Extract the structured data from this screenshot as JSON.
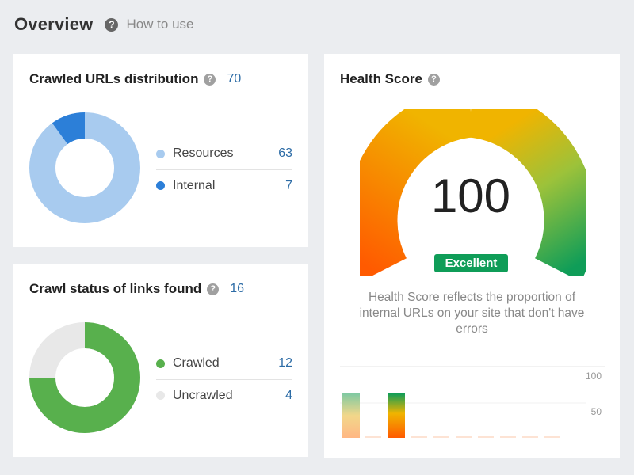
{
  "header": {
    "title": "Overview",
    "help_icon": "question-icon",
    "how_to_label": "How to use"
  },
  "crawled_urls": {
    "title": "Crawled URLs distribution",
    "help_icon": "question-icon",
    "total": "70",
    "items": [
      {
        "label": "Resources",
        "value": "63",
        "color": "#a8cbef"
      },
      {
        "label": "Internal",
        "value": "7",
        "color": "#2c7fd8"
      }
    ]
  },
  "crawl_status": {
    "title": "Crawl status of links found",
    "help_icon": "question-icon",
    "total": "16",
    "items": [
      {
        "label": "Crawled",
        "value": "12",
        "color": "#58b04d"
      },
      {
        "label": "Uncrawled",
        "value": "4",
        "color": "#e8e8e8"
      }
    ]
  },
  "health": {
    "title": "Health Score",
    "help_icon": "question-icon",
    "score": "100",
    "rating": "Excellent",
    "description": "Health Score reflects the proportion of internal URLs on your site that don't have errors",
    "axis_top": "100",
    "axis_mid": "50",
    "colors": {
      "low": "#ff5a00",
      "mid": "#f0b400",
      "high": "#0f9d58"
    }
  }
}
